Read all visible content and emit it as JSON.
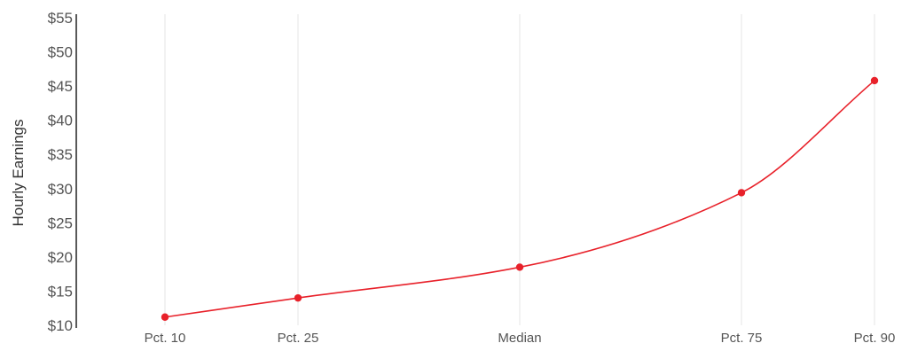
{
  "chart_data": {
    "type": "line",
    "title": "",
    "xlabel": "",
    "ylabel": "Hourly Earnings",
    "categories": [
      "Pct. 10",
      "Pct. 25",
      "Median",
      "Pct. 75",
      "Pct. 90"
    ],
    "percentiles": [
      10,
      25,
      50,
      75,
      90
    ],
    "values": [
      11.2,
      14.0,
      18.5,
      29.4,
      45.8
    ],
    "ylim": [
      10,
      55
    ],
    "yticks": [
      10,
      15,
      20,
      25,
      30,
      35,
      40,
      45,
      50,
      55
    ],
    "ytick_labels": [
      "$10",
      "$15",
      "$20",
      "$25",
      "$30",
      "$35",
      "$40",
      "$45",
      "$50",
      "$55"
    ],
    "grid": "vertical",
    "legend": "none",
    "colors": {
      "line": "#e8212a",
      "grid": "#e6e6e6",
      "axis": "#222222",
      "text": "#555555"
    }
  }
}
